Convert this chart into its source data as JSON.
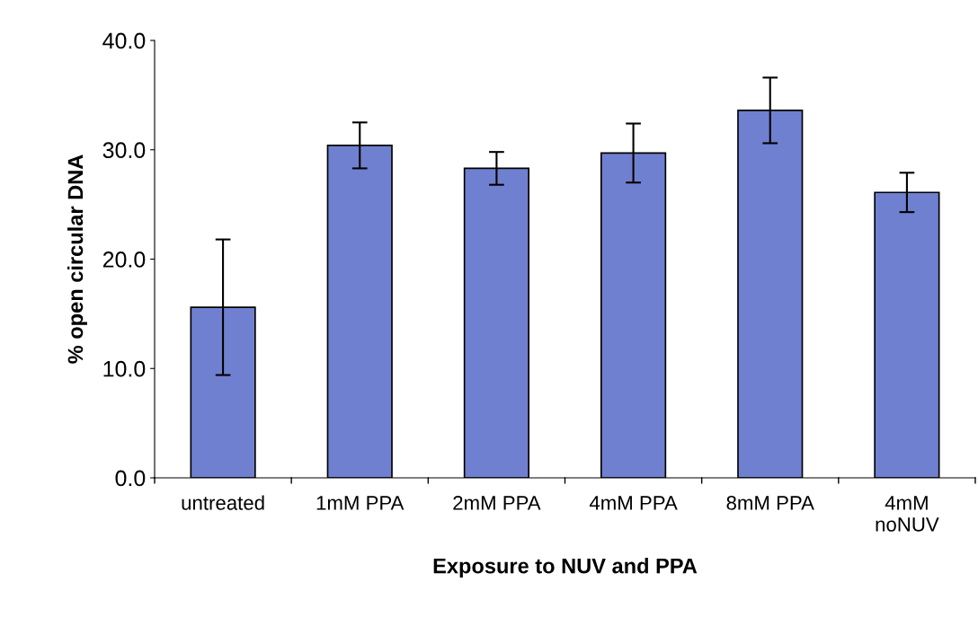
{
  "chart_data": {
    "type": "bar",
    "xlabel": "Exposure to NUV and PPA",
    "ylabel": "% open circular DNA",
    "categories": [
      "untreated",
      "1mM PPA",
      "2mM PPA",
      "4mM PPA",
      "8mM PPA",
      "4mM\nnoNUV"
    ],
    "values": [
      15.6,
      30.4,
      28.3,
      29.7,
      33.6,
      26.1
    ],
    "errors": [
      6.2,
      2.1,
      1.5,
      2.7,
      3.0,
      1.8
    ],
    "color": "#7080d0",
    "ylim": [
      0,
      40
    ],
    "yticks": [
      {
        "value": 0,
        "label": "0.0"
      },
      {
        "value": 10,
        "label": "10.0"
      },
      {
        "value": 20,
        "label": "20.0"
      },
      {
        "value": 30,
        "label": "30.0"
      },
      {
        "value": 40,
        "label": "40.0"
      }
    ],
    "grid": false,
    "legend": false
  }
}
